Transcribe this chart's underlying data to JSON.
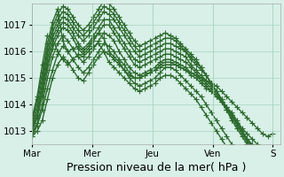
{
  "background_color": "#d8f0e8",
  "plot_bg_color": "#d8f0e8",
  "line_color": "#2d6a2d",
  "marker": "+",
  "marker_size": 4,
  "linewidth": 1.0,
  "ylim": [
    1012.5,
    1017.8
  ],
  "yticks": [
    1013,
    1014,
    1015,
    1016,
    1017
  ],
  "xlabel": "Pression niveau de la mer( hPa )",
  "xlabel_fontsize": 9,
  "xtick_labels": [
    "Mar",
    "Mer",
    "Jeu",
    "Ven",
    "S"
  ],
  "xtick_positions": [
    0,
    24,
    48,
    72,
    96
  ],
  "grid_color": "#aad4c0",
  "title_visible": false,
  "series": [
    [
      1012.8,
      1013.0,
      1013.4,
      1014.2,
      1015.0,
      1015.5,
      1015.8,
      1015.6,
      1015.3,
      1015.0,
      1014.9,
      1015.2,
      1015.5,
      1015.8,
      1016.0,
      1015.9,
      1015.7,
      1015.5,
      1015.3,
      1015.1,
      1015.0,
      1015.0,
      1015.1,
      1015.2,
      1015.3,
      1015.4,
      1015.5,
      1015.5,
      1015.5,
      1015.4,
      1015.3,
      1015.2,
      1015.1,
      1015.0,
      1014.9,
      1014.8,
      1014.7,
      1014.5,
      1014.3,
      1014.1,
      1013.9,
      1013.7,
      1013.5,
      1013.3,
      1013.1,
      1012.9,
      1012.8,
      1012.9
    ],
    [
      1012.8,
      1013.2,
      1013.8,
      1014.6,
      1015.3,
      1015.9,
      1016.2,
      1016.0,
      1015.7,
      1015.4,
      1015.2,
      1015.4,
      1015.7,
      1016.0,
      1016.3,
      1016.2,
      1016.0,
      1015.7,
      1015.5,
      1015.2,
      1015.0,
      1015.0,
      1015.1,
      1015.2,
      1015.3,
      1015.5,
      1015.6,
      1015.6,
      1015.5,
      1015.4,
      1015.3,
      1015.1,
      1015.0,
      1014.8,
      1014.6,
      1014.5,
      1014.3,
      1014.1,
      1013.9,
      1013.7,
      1013.4,
      1013.1,
      1012.9,
      1012.7,
      1012.5,
      1012.3,
      1012.2,
      1012.2
    ],
    [
      1012.9,
      1013.3,
      1014.0,
      1015.0,
      1015.8,
      1016.3,
      1016.6,
      1016.4,
      1016.1,
      1015.8,
      1015.6,
      1015.8,
      1016.1,
      1016.4,
      1016.7,
      1016.6,
      1016.4,
      1016.0,
      1015.7,
      1015.4,
      1015.2,
      1015.1,
      1015.2,
      1015.3,
      1015.4,
      1015.6,
      1015.7,
      1015.7,
      1015.6,
      1015.5,
      1015.4,
      1015.2,
      1015.1,
      1014.9,
      1014.7,
      1014.5,
      1014.3,
      1014.1,
      1013.8,
      1013.6,
      1013.3,
      1013.0,
      1012.7,
      1012.5,
      1012.3,
      1012.1,
      1012.0,
      1012.0
    ],
    [
      1013.0,
      1013.5,
      1014.3,
      1015.3,
      1016.1,
      1016.6,
      1016.9,
      1016.8,
      1016.5,
      1016.1,
      1015.9,
      1016.1,
      1016.4,
      1016.7,
      1017.0,
      1017.0,
      1016.7,
      1016.4,
      1016.1,
      1015.8,
      1015.5,
      1015.4,
      1015.5,
      1015.6,
      1015.7,
      1015.8,
      1015.9,
      1015.9,
      1015.8,
      1015.7,
      1015.6,
      1015.4,
      1015.2,
      1015.0,
      1014.8,
      1014.6,
      1014.4,
      1014.1,
      1013.9,
      1013.6,
      1013.3,
      1013.0,
      1012.7,
      1012.4,
      1012.2,
      1012.0,
      1011.9,
      1011.9
    ],
    [
      1013.1,
      1013.6,
      1014.5,
      1015.5,
      1016.3,
      1016.8,
      1017.1,
      1017.0,
      1016.7,
      1016.3,
      1016.1,
      1016.3,
      1016.6,
      1016.9,
      1017.2,
      1017.2,
      1016.9,
      1016.6,
      1016.3,
      1016.0,
      1015.7,
      1015.6,
      1015.7,
      1015.8,
      1015.9,
      1016.0,
      1016.1,
      1016.1,
      1016.0,
      1015.9,
      1015.8,
      1015.5,
      1015.3,
      1015.1,
      1014.9,
      1014.7,
      1014.5,
      1014.2,
      1013.9,
      1013.6,
      1013.3,
      1013.0,
      1012.7,
      1012.4,
      1012.2,
      1012.0,
      1011.9,
      1011.9
    ],
    [
      1013.0,
      1013.6,
      1014.6,
      1015.7,
      1016.5,
      1017.0,
      1017.3,
      1017.2,
      1016.9,
      1016.6,
      1016.4,
      1016.6,
      1016.9,
      1017.2,
      1017.5,
      1017.4,
      1017.2,
      1016.9,
      1016.6,
      1016.3,
      1016.0,
      1015.8,
      1015.9,
      1016.0,
      1016.1,
      1016.2,
      1016.3,
      1016.3,
      1016.2,
      1016.1,
      1016.0,
      1015.7,
      1015.5,
      1015.3,
      1015.1,
      1014.8,
      1014.5,
      1014.2,
      1013.9,
      1013.6,
      1013.3,
      1013.0,
      1012.7,
      1012.4,
      1012.1,
      1011.9,
      1011.8,
      1011.9
    ],
    [
      1013.2,
      1013.8,
      1014.8,
      1015.9,
      1016.7,
      1017.2,
      1017.5,
      1017.4,
      1017.1,
      1016.8,
      1016.6,
      1016.8,
      1017.1,
      1017.4,
      1017.7,
      1017.6,
      1017.4,
      1017.1,
      1016.8,
      1016.5,
      1016.2,
      1016.0,
      1016.1,
      1016.2,
      1016.3,
      1016.4,
      1016.5,
      1016.5,
      1016.4,
      1016.2,
      1016.0,
      1015.8,
      1015.6,
      1015.4,
      1015.1,
      1014.8,
      1014.5,
      1014.2,
      1013.8,
      1013.5,
      1013.2,
      1012.9,
      1012.6,
      1012.3,
      1012.1,
      1011.9,
      1011.8,
      1011.9
    ],
    [
      1013.3,
      1014.0,
      1015.0,
      1016.1,
      1016.9,
      1017.4,
      1017.7,
      1017.6,
      1017.3,
      1017.0,
      1016.8,
      1017.0,
      1017.3,
      1017.6,
      1017.9,
      1017.8,
      1017.6,
      1017.3,
      1017.0,
      1016.7,
      1016.4,
      1016.2,
      1016.3,
      1016.4,
      1016.5,
      1016.6,
      1016.7,
      1016.6,
      1016.5,
      1016.3,
      1016.1,
      1015.9,
      1015.7,
      1015.4,
      1015.1,
      1014.8,
      1014.5,
      1014.1,
      1013.8,
      1013.4,
      1013.1,
      1012.8,
      1012.5,
      1012.2,
      1012.0,
      1011.8,
      1011.7,
      1011.8
    ],
    [
      1013.4,
      1014.2,
      1015.2,
      1016.3,
      1017.1,
      1017.6,
      1016.4,
      1016.0,
      1016.1,
      1016.2,
      1016.0,
      1016.2,
      1016.5,
      1016.7,
      1016.5,
      1016.0,
      1015.8,
      1015.6,
      1015.3,
      1015.0,
      1014.8,
      1014.7,
      1014.8,
      1014.9,
      1015.0,
      1015.2,
      1015.4,
      1015.4,
      1015.3,
      1015.1,
      1014.9,
      1014.7,
      1014.5,
      1014.3,
      1014.0,
      1013.7,
      1013.4,
      1013.1,
      1012.8,
      1012.5,
      1012.2,
      1011.9,
      1011.7,
      1011.5,
      1011.3,
      1011.2,
      1011.1,
      1011.2
    ],
    [
      1013.5,
      1014.3,
      1015.5,
      1016.6,
      1016.5,
      1016.0,
      1015.7,
      1015.5,
      1015.7,
      1015.9,
      1015.8,
      1016.0,
      1016.2,
      1016.3,
      1016.0,
      1015.6,
      1015.4,
      1015.2,
      1015.0,
      1014.8,
      1014.6,
      1014.5,
      1014.6,
      1014.7,
      1014.8,
      1015.0,
      1015.1,
      1015.1,
      1015.0,
      1014.8,
      1014.6,
      1014.4,
      1014.2,
      1013.9,
      1013.6,
      1013.3,
      1013.0,
      1012.7,
      1012.4,
      1012.1,
      1011.8,
      1011.6,
      1011.4,
      1011.2,
      1011.0,
      1010.9,
      1010.9,
      1011.0
    ]
  ]
}
